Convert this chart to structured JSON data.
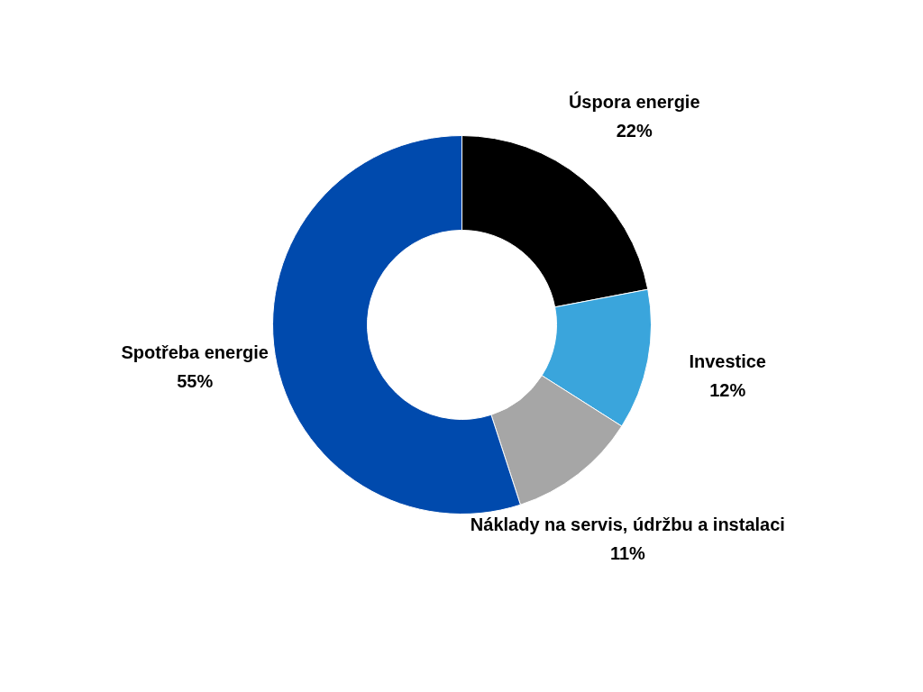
{
  "chart_data": {
    "type": "donut",
    "categories": [
      "Úspora energie",
      "Investice",
      "Náklady na servis, údržbu a instalaci",
      "Spotřeba energie"
    ],
    "values": [
      22,
      12,
      11,
      55
    ],
    "colors": [
      "#000000",
      "#3aa5dc",
      "#a6a6a6",
      "#004aad"
    ],
    "value_labels": [
      "22%",
      "12%",
      "11%",
      "55%"
    ]
  }
}
